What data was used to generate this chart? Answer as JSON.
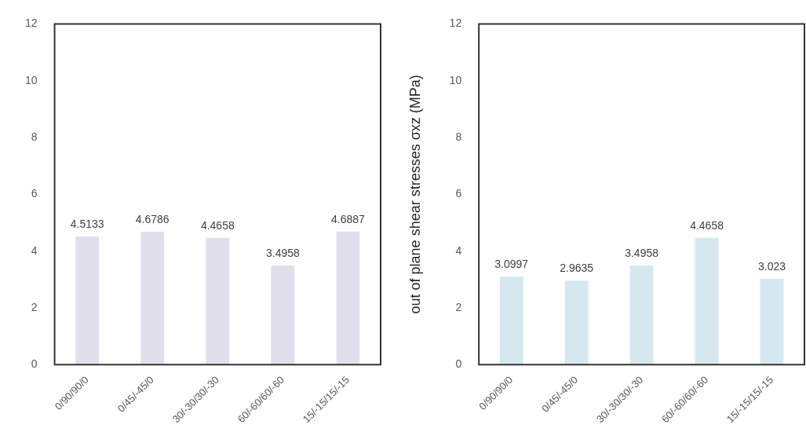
{
  "chart_data": [
    {
      "type": "bar",
      "categories": [
        "0/90/90/0",
        "0/45/-45/0",
        "30/-30/30/-30",
        "60/-60/60/-60",
        "15/-15/15/-15"
      ],
      "values": [
        4.5133,
        4.6786,
        4.4658,
        3.4958,
        4.6887
      ],
      "color": "#e2dfec",
      "ylim": [
        0,
        12
      ],
      "yticks": [
        0,
        2,
        4,
        6,
        8,
        10,
        12
      ],
      "grid": false,
      "legend": false,
      "data_labels": true
    },
    {
      "type": "bar",
      "ylabel": "out of plane shear stresses σxz (MPa)",
      "categories": [
        "0/90/90/0",
        "0/45/-45/0",
        "30/-30/30/-30",
        "60/-60/60/-60",
        "15/-15/15/-15"
      ],
      "values": [
        3.0997,
        2.9635,
        3.4958,
        4.4658,
        3.023
      ],
      "color": "#d5e8f0",
      "ylim": [
        0,
        12
      ],
      "yticks": [
        0,
        2,
        4,
        6,
        8,
        10,
        12
      ],
      "grid": false,
      "legend": false,
      "data_labels": true
    }
  ]
}
